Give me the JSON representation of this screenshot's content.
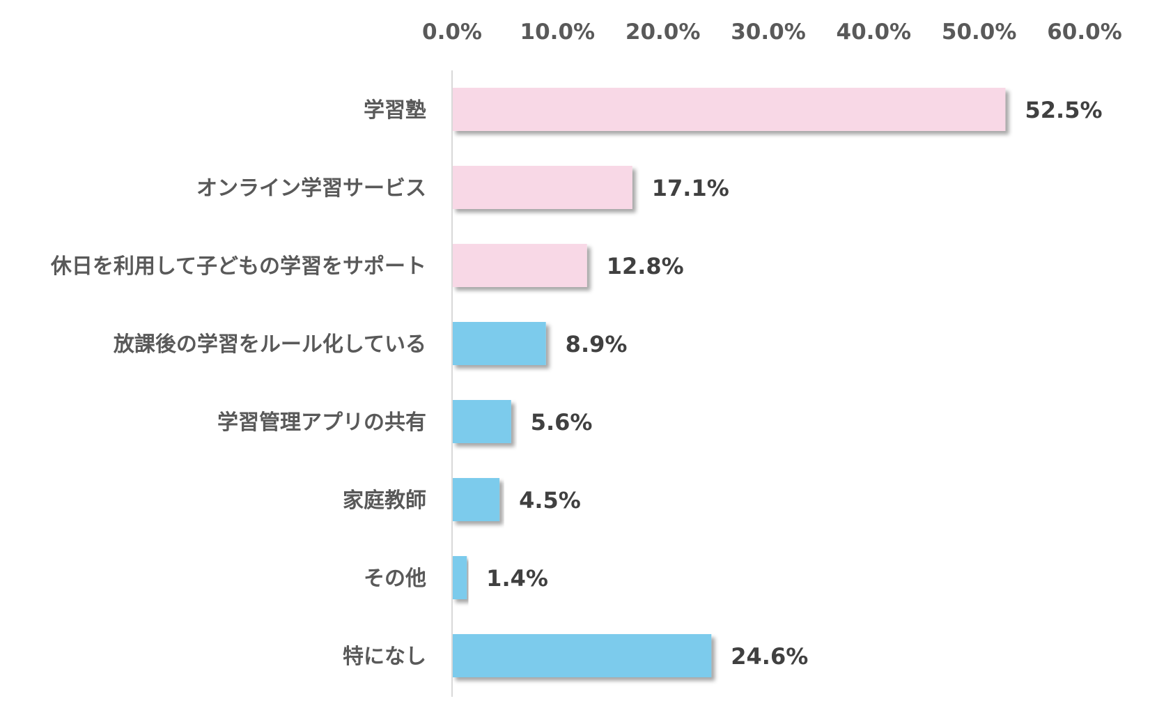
{
  "chart_data": {
    "type": "bar",
    "orientation": "horizontal",
    "xlim": [
      0,
      60
    ],
    "x_axis_position": "top",
    "ticks": [
      "0.0%",
      "10.0%",
      "20.0%",
      "30.0%",
      "40.0%",
      "50.0%",
      "60.0%"
    ],
    "tick_values": [
      0,
      10,
      20,
      30,
      40,
      50,
      60
    ],
    "grid": false,
    "legend": "none",
    "categories": [
      "学習塾",
      "オンライン学習サービス",
      "休日を利用して子どもの学習をサポート",
      "放課後の学習をルール化している",
      "学習管理アプリの共有",
      "家庭教師",
      "その他",
      "特になし"
    ],
    "values": [
      52.5,
      17.1,
      12.8,
      8.9,
      5.6,
      4.5,
      1.4,
      24.6
    ],
    "value_labels": [
      "52.5%",
      "17.1%",
      "12.8%",
      "8.9%",
      "5.6%",
      "4.5%",
      "1.4%",
      "24.6%"
    ],
    "bar_colors": [
      "#f8d8e6",
      "#f8d8e6",
      "#f8d8e6",
      "#7ccbec",
      "#7ccbec",
      "#7ccbec",
      "#7ccbec",
      "#7ccbec"
    ],
    "axis_line_color": "#d9d9d9"
  }
}
